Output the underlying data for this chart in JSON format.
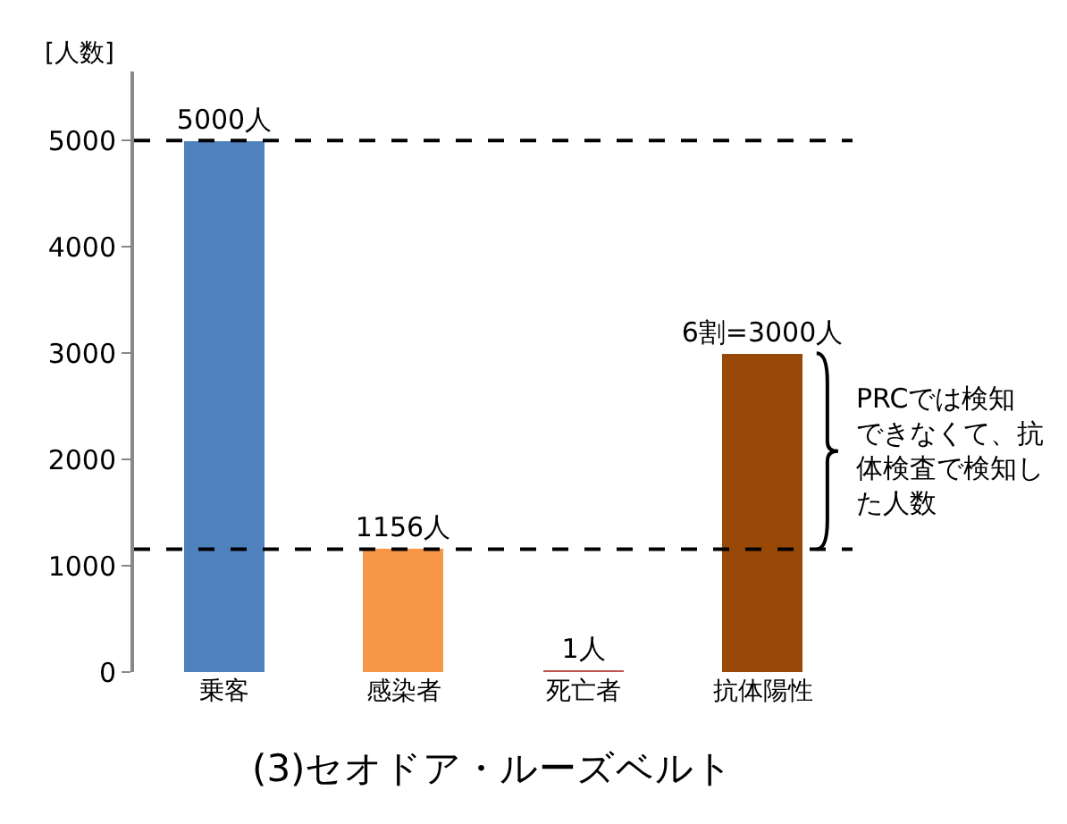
{
  "chart_data": {
    "type": "bar",
    "title": "(3)セオドア・ルーズベルト",
    "ylabel": "[人数]",
    "categories": [
      "乗客",
      "感染者",
      "死亡者",
      "抗体陽性"
    ],
    "values": [
      5000,
      1156,
      1,
      3000
    ],
    "colors": [
      "#4f81bd",
      "#f79646",
      "#c0504d",
      "#984807"
    ],
    "value_labels": [
      "5000人",
      "1156人",
      "1人",
      "6割=3000人"
    ],
    "ylim": [
      0,
      5650
    ],
    "yticks": [
      0,
      1000,
      2000,
      3000,
      4000,
      5000
    ],
    "grid": false,
    "ref_lines": [
      {
        "axis": "y",
        "value": 5000,
        "line_style": "dashed",
        "color": "#000000"
      },
      {
        "axis": "y",
        "value": 1156,
        "line_style": "dashed",
        "color": "#000000"
      }
    ],
    "annotations": [
      "PRCでは検知できなくて、抗体検査で検知した人数"
    ]
  }
}
